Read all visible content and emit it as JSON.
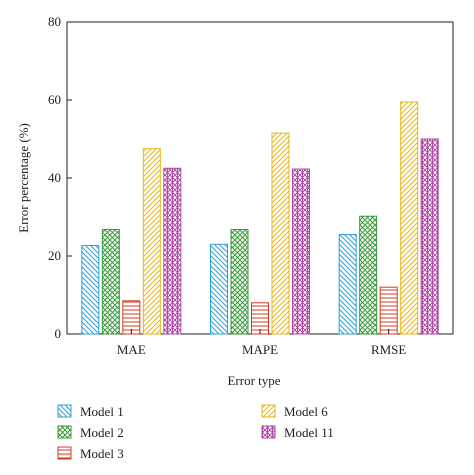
{
  "chart_data": {
    "type": "bar",
    "categories": [
      "MAE",
      "MAPE",
      "RMSE"
    ],
    "series": [
      {
        "name": "Model 1",
        "values": [
          22.7,
          23.0,
          25.5
        ],
        "color": "#2f9fd8",
        "pattern": "diag-down"
      },
      {
        "name": "Model 2",
        "values": [
          26.8,
          26.8,
          30.2
        ],
        "color": "#3a9a3a",
        "pattern": "crosshatch"
      },
      {
        "name": "Model 3",
        "values": [
          8.5,
          8.0,
          12.0
        ],
        "color": "#d43a1e",
        "pattern": "horizontal"
      },
      {
        "name": "Model 6",
        "values": [
          47.5,
          51.5,
          59.5
        ],
        "color": "#e8b619",
        "pattern": "diag-up"
      },
      {
        "name": "Model 11",
        "values": [
          42.5,
          42.3,
          50.0
        ],
        "color": "#b04aa8",
        "pattern": "diag-cross"
      }
    ],
    "xlabel": "Error type",
    "ylabel": "Error percentage (%)",
    "ylim": [
      0,
      80
    ],
    "yticks": [
      "0",
      "20",
      "40",
      "60",
      "80"
    ],
    "grid": false,
    "legend_placement": "bottom"
  }
}
